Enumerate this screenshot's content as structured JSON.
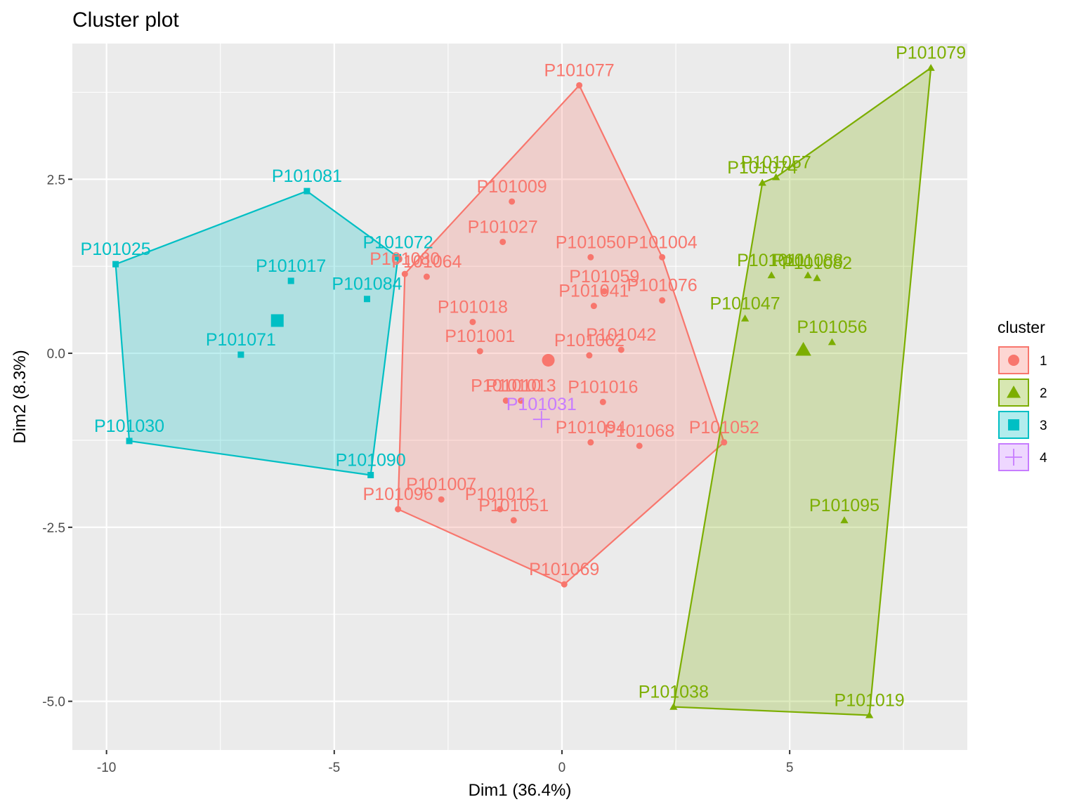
{
  "chart_data": {
    "type": "scatter",
    "title": "Cluster plot",
    "xlabel": "Dim1 (36.4%)",
    "ylabel": "Dim2 (8.3%)",
    "xlim": [
      -10.75,
      8.9
    ],
    "ylim": [
      -5.7,
      4.45
    ],
    "x_ticks": [
      -10,
      -5,
      0,
      5
    ],
    "x_tick_labels": [
      "-10",
      "-5",
      "0",
      "5"
    ],
    "y_ticks": [
      -5.0,
      -2.5,
      0.0,
      2.5
    ],
    "y_tick_labels": [
      "-5.0",
      "-2.5",
      "0.0",
      "2.5"
    ],
    "grid": true,
    "legend_title": "cluster",
    "legend_position": "right",
    "series": [
      {
        "name": "1",
        "shape": "circle",
        "color": "#F8766D",
        "centroid": [
          -0.3,
          -0.1
        ],
        "hull": [
          "P101077",
          "P101004",
          "P101052",
          "P101069",
          "P101096",
          "P101080"
        ],
        "points": [
          {
            "label": "P101077",
            "x": 0.38,
            "y": 3.85
          },
          {
            "label": "P101009",
            "x": -1.1,
            "y": 2.18
          },
          {
            "label": "P101027",
            "x": -1.3,
            "y": 1.6
          },
          {
            "label": "P101050",
            "x": 0.63,
            "y": 1.38
          },
          {
            "label": "P101004",
            "x": 2.2,
            "y": 1.38
          },
          {
            "label": "P101080",
            "x": -3.45,
            "y": 1.14
          },
          {
            "label": "P101064",
            "x": -2.97,
            "y": 1.1
          },
          {
            "label": "P101059",
            "x": 0.93,
            "y": 0.89
          },
          {
            "label": "P101041",
            "x": 0.7,
            "y": 0.68
          },
          {
            "label": "P101076",
            "x": 2.2,
            "y": 0.76
          },
          {
            "label": "P101018",
            "x": -1.96,
            "y": 0.45
          },
          {
            "label": "P101001",
            "x": -1.8,
            "y": 0.03
          },
          {
            "label": "P101062",
            "x": 0.6,
            "y": -0.03
          },
          {
            "label": "P101042",
            "x": 1.3,
            "y": 0.05
          },
          {
            "label": "P101010",
            "x": -1.23,
            "y": -0.68
          },
          {
            "label": "P101013",
            "x": -0.9,
            "y": -0.68
          },
          {
            "label": "P101016",
            "x": 0.9,
            "y": -0.7
          },
          {
            "label": "P101094",
            "x": 0.63,
            "y": -1.28
          },
          {
            "label": "P101068",
            "x": 1.7,
            "y": -1.33
          },
          {
            "label": "P101052",
            "x": 3.56,
            "y": -1.28
          },
          {
            "label": "P101007",
            "x": -2.65,
            "y": -2.1
          },
          {
            "label": "P101012",
            "x": -1.36,
            "y": -2.24
          },
          {
            "label": "P101051",
            "x": -1.06,
            "y": -2.4
          },
          {
            "label": "P101096",
            "x": -3.6,
            "y": -2.24
          },
          {
            "label": "P101069",
            "x": 0.05,
            "y": -3.32
          }
        ]
      },
      {
        "name": "2",
        "shape": "triangle",
        "color": "#7CAE00",
        "centroid": [
          5.3,
          0.05
        ],
        "hull": [
          "P101079",
          "P101019",
          "P101038",
          "P101074",
          "P101057"
        ],
        "points": [
          {
            "label": "P101079",
            "x": 8.1,
            "y": 4.1
          },
          {
            "label": "P101057",
            "x": 4.7,
            "y": 2.53
          },
          {
            "label": "P101074",
            "x": 4.4,
            "y": 2.45
          },
          {
            "label": "P101011",
            "x": 4.6,
            "y": 1.12
          },
          {
            "label": "P101088",
            "x": 5.4,
            "y": 1.12
          },
          {
            "label": "P101082",
            "x": 5.6,
            "y": 1.08
          },
          {
            "label": "P101047",
            "x": 4.02,
            "y": 0.5
          },
          {
            "label": "P101056",
            "x": 5.93,
            "y": 0.16
          },
          {
            "label": "P101095",
            "x": 6.2,
            "y": -2.4
          },
          {
            "label": "P101038",
            "x": 2.45,
            "y": -5.08
          },
          {
            "label": "P101019",
            "x": 6.75,
            "y": -5.2
          }
        ]
      },
      {
        "name": "3",
        "shape": "square",
        "color": "#00BFC4",
        "centroid": [
          -6.25,
          0.47
        ],
        "hull": [
          "P101081",
          "P101072",
          "P101090",
          "P101030",
          "P101025"
        ],
        "points": [
          {
            "label": "P101081",
            "x": -5.6,
            "y": 2.33
          },
          {
            "label": "P101025",
            "x": -9.8,
            "y": 1.28
          },
          {
            "label": "P101072",
            "x": -3.6,
            "y": 1.38
          },
          {
            "label": "P101017",
            "x": -5.95,
            "y": 1.04
          },
          {
            "label": "P101084",
            "x": -4.28,
            "y": 0.78
          },
          {
            "label": "P101071",
            "x": -7.05,
            "y": -0.02
          },
          {
            "label": "P101030",
            "x": -9.5,
            "y": -1.26
          },
          {
            "label": "P101090",
            "x": -4.2,
            "y": -1.75
          }
        ]
      },
      {
        "name": "4",
        "shape": "cross",
        "color": "#C77CFF",
        "centroid": [
          -0.45,
          -0.95
        ],
        "hull": [],
        "points": [
          {
            "label": "P101031",
            "x": -0.45,
            "y": -0.95
          }
        ]
      }
    ]
  }
}
